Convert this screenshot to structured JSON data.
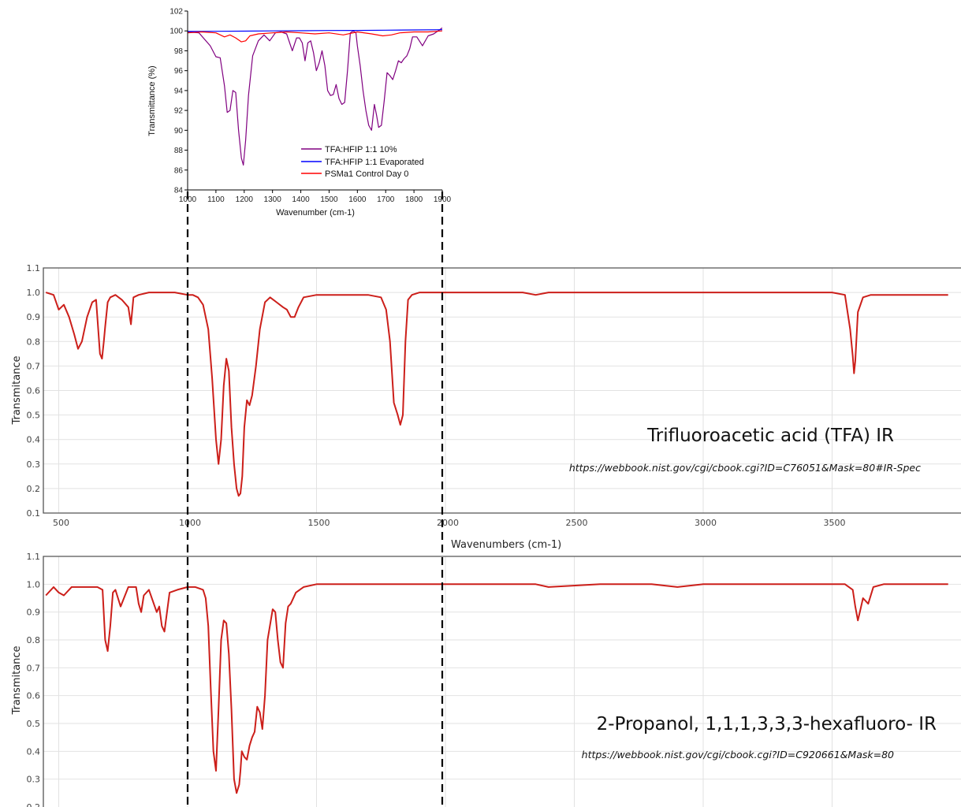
{
  "chart_data": [
    {
      "type": "line",
      "xlabel": "Wavenumber (cm-1)",
      "ylabel": "Transmittance (%)",
      "xlim": [
        1000,
        1900
      ],
      "ylim": [
        84,
        102
      ],
      "xticks": [
        "1000",
        "1100",
        "1200",
        "1300",
        "1400",
        "1500",
        "1600",
        "1700",
        "1800",
        "1900"
      ],
      "yticks": [
        "84",
        "86",
        "88",
        "90",
        "92",
        "94",
        "96",
        "98",
        "100",
        "102"
      ],
      "legend_position": "bottom-right",
      "series": [
        {
          "name": "TFA:HFIP 1:1 10%",
          "color": "#800080",
          "x": [
            1000,
            1040,
            1080,
            1100,
            1115,
            1130,
            1140,
            1150,
            1160,
            1170,
            1180,
            1190,
            1197,
            1205,
            1215,
            1230,
            1250,
            1270,
            1290,
            1310,
            1330,
            1350,
            1370,
            1385,
            1395,
            1405,
            1415,
            1425,
            1435,
            1445,
            1455,
            1465,
            1475,
            1485,
            1495,
            1505,
            1515,
            1525,
            1535,
            1545,
            1555,
            1565,
            1575,
            1585,
            1595,
            1600,
            1610,
            1620,
            1630,
            1640,
            1650,
            1660,
            1668,
            1675,
            1685,
            1695,
            1705,
            1715,
            1725,
            1735,
            1745,
            1755,
            1765,
            1775,
            1785,
            1795,
            1810,
            1830,
            1850,
            1870,
            1885,
            1900
          ],
          "y": [
            99.9,
            99.8,
            98.5,
            97.4,
            97.3,
            94.5,
            91.8,
            92.0,
            94.0,
            93.8,
            90.0,
            87.2,
            86.5,
            89.0,
            93.5,
            97.5,
            99.0,
            99.6,
            99.0,
            99.8,
            99.9,
            99.7,
            98.0,
            99.3,
            99.3,
            98.8,
            97.0,
            98.8,
            99.0,
            97.8,
            96.0,
            96.8,
            98.0,
            96.5,
            94.0,
            93.5,
            93.6,
            94.6,
            93.2,
            92.6,
            92.8,
            96.0,
            99.8,
            100.0,
            99.8,
            98.5,
            96.5,
            94.0,
            92.0,
            90.5,
            90.0,
            92.6,
            91.5,
            90.3,
            90.5,
            93.0,
            95.8,
            95.5,
            95.1,
            96.0,
            97.0,
            96.8,
            97.2,
            97.5,
            98.2,
            99.4,
            99.4,
            98.5,
            99.5,
            99.7,
            100.0,
            100.3
          ]
        },
        {
          "name": "TFA:HFIP 1:1 Evaporated",
          "color": "#0000ff",
          "x": [
            1000,
            1100,
            1200,
            1300,
            1400,
            1500,
            1600,
            1700,
            1800,
            1900
          ],
          "y": [
            99.95,
            99.96,
            99.98,
            100.0,
            100.02,
            100.04,
            100.05,
            100.07,
            100.1,
            100.12
          ]
        },
        {
          "name": "PSMa1 Control Day 0",
          "color": "#ff0000",
          "x": [
            1000,
            1050,
            1100,
            1130,
            1150,
            1170,
            1190,
            1205,
            1220,
            1250,
            1300,
            1350,
            1400,
            1450,
            1500,
            1550,
            1600,
            1650,
            1690,
            1720,
            1750,
            1800,
            1850,
            1900
          ],
          "y": [
            99.8,
            99.9,
            99.8,
            99.4,
            99.6,
            99.3,
            98.9,
            99.0,
            99.5,
            99.7,
            99.8,
            99.9,
            99.8,
            99.7,
            99.8,
            99.6,
            99.9,
            99.7,
            99.5,
            99.6,
            99.8,
            99.9,
            99.9,
            100.0
          ]
        }
      ]
    },
    {
      "type": "line",
      "title": "Trifluoroacetic acid (TFA) IR",
      "source": "https://webbook.nist.gov/cgi/cbook.cgi?ID=C76051&Mask=80#IR-Spec",
      "xlabel": "Wavenumbers (cm-1)",
      "ylabel": "Transmitance",
      "xlim": [
        450,
        3950
      ],
      "ylim": [
        0.1,
        1.1
      ],
      "xticks": [
        "500",
        "1000",
        "1500",
        "2000",
        "2500",
        "3000",
        "3500"
      ],
      "yticks": [
        "0.1",
        "0.2",
        "0.3",
        "0.4",
        "0.5",
        "0.6",
        "0.7",
        "0.8",
        "0.9",
        "1.0",
        "1.1"
      ],
      "grid": true,
      "series": [
        {
          "name": "",
          "color": "#cc1f1a",
          "x": [
            450,
            480,
            500,
            520,
            540,
            560,
            575,
            590,
            610,
            630,
            645,
            660,
            668,
            675,
            680,
            690,
            700,
            720,
            745,
            770,
            780,
            790,
            810,
            850,
            900,
            950,
            1000,
            1020,
            1040,
            1060,
            1080,
            1095,
            1110,
            1120,
            1130,
            1140,
            1150,
            1160,
            1170,
            1180,
            1190,
            1198,
            1205,
            1212,
            1220,
            1230,
            1240,
            1250,
            1265,
            1280,
            1300,
            1320,
            1345,
            1370,
            1385,
            1400,
            1415,
            1430,
            1450,
            1500,
            1600,
            1700,
            1750,
            1770,
            1785,
            1800,
            1815,
            1825,
            1835,
            1845,
            1855,
            1870,
            1900,
            2000,
            2300,
            2350,
            2400,
            2600,
            2800,
            3000,
            3200,
            3400,
            3500,
            3550,
            3570,
            3580,
            3585,
            3590,
            3600,
            3620,
            3650,
            3750,
            3850,
            3950
          ],
          "y": [
            1.0,
            0.99,
            0.93,
            0.95,
            0.9,
            0.83,
            0.77,
            0.8,
            0.9,
            0.96,
            0.97,
            0.75,
            0.73,
            0.8,
            0.86,
            0.96,
            0.98,
            0.99,
            0.97,
            0.94,
            0.87,
            0.98,
            0.99,
            1.0,
            1.0,
            1.0,
            0.99,
            0.99,
            0.98,
            0.95,
            0.85,
            0.65,
            0.4,
            0.3,
            0.4,
            0.62,
            0.73,
            0.68,
            0.45,
            0.3,
            0.2,
            0.17,
            0.18,
            0.25,
            0.45,
            0.56,
            0.54,
            0.58,
            0.7,
            0.85,
            0.96,
            0.98,
            0.96,
            0.94,
            0.93,
            0.9,
            0.9,
            0.94,
            0.98,
            0.99,
            0.99,
            0.99,
            0.98,
            0.93,
            0.8,
            0.55,
            0.5,
            0.46,
            0.5,
            0.8,
            0.97,
            0.99,
            1.0,
            1.0,
            1.0,
            0.99,
            1.0,
            1.0,
            1.0,
            1.0,
            1.0,
            1.0,
            1.0,
            0.99,
            0.85,
            0.74,
            0.67,
            0.72,
            0.92,
            0.98,
            0.99,
            0.99,
            0.99,
            0.99
          ]
        }
      ]
    },
    {
      "type": "line",
      "title": "2-Propanol, 1,1,1,3,3,3-hexafluoro- IR",
      "source": "https://webbook.nist.gov/cgi/cbook.cgi?ID=C920661&Mask=80",
      "xlabel": "",
      "ylabel": "Transmitance",
      "xlim": [
        450,
        3950
      ],
      "ylim": [
        0.2,
        1.1
      ],
      "yticks": [
        "0.2",
        "0.3",
        "0.4",
        "0.5",
        "0.6",
        "0.7",
        "0.8",
        "0.9",
        "1.0",
        "1.1"
      ],
      "grid": true,
      "series": [
        {
          "name": "",
          "color": "#cc1f1a",
          "x": [
            450,
            480,
            500,
            520,
            550,
            600,
            650,
            670,
            680,
            690,
            700,
            710,
            720,
            740,
            770,
            800,
            810,
            820,
            830,
            850,
            880,
            890,
            900,
            910,
            930,
            960,
            1000,
            1030,
            1060,
            1070,
            1080,
            1090,
            1100,
            1110,
            1120,
            1130,
            1140,
            1150,
            1160,
            1170,
            1180,
            1190,
            1200,
            1205,
            1210,
            1220,
            1230,
            1240,
            1250,
            1260,
            1270,
            1280,
            1290,
            1300,
            1310,
            1330,
            1340,
            1350,
            1360,
            1370,
            1380,
            1390,
            1400,
            1420,
            1450,
            1500,
            1600,
            1800,
            2000,
            2200,
            2350,
            2400,
            2600,
            2800,
            2900,
            3000,
            3200,
            3400,
            3550,
            3580,
            3590,
            3600,
            3610,
            3620,
            3640,
            3660,
            3700,
            3950
          ],
          "y": [
            0.96,
            0.99,
            0.97,
            0.96,
            0.99,
            0.99,
            0.99,
            0.98,
            0.8,
            0.76,
            0.85,
            0.97,
            0.98,
            0.92,
            0.99,
            0.99,
            0.93,
            0.9,
            0.96,
            0.98,
            0.9,
            0.92,
            0.85,
            0.83,
            0.97,
            0.98,
            0.99,
            0.99,
            0.98,
            0.95,
            0.85,
            0.62,
            0.4,
            0.33,
            0.55,
            0.8,
            0.87,
            0.86,
            0.75,
            0.55,
            0.3,
            0.25,
            0.28,
            0.33,
            0.4,
            0.38,
            0.37,
            0.42,
            0.45,
            0.47,
            0.56,
            0.54,
            0.48,
            0.6,
            0.8,
            0.91,
            0.9,
            0.8,
            0.72,
            0.7,
            0.86,
            0.92,
            0.93,
            0.97,
            0.99,
            1.0,
            1.0,
            1.0,
            1.0,
            1.0,
            1.0,
            0.99,
            1.0,
            1.0,
            0.99,
            1.0,
            1.0,
            1.0,
            1.0,
            0.98,
            0.92,
            0.87,
            0.91,
            0.95,
            0.93,
            0.99,
            1.0,
            1.0
          ]
        }
      ]
    }
  ]
}
